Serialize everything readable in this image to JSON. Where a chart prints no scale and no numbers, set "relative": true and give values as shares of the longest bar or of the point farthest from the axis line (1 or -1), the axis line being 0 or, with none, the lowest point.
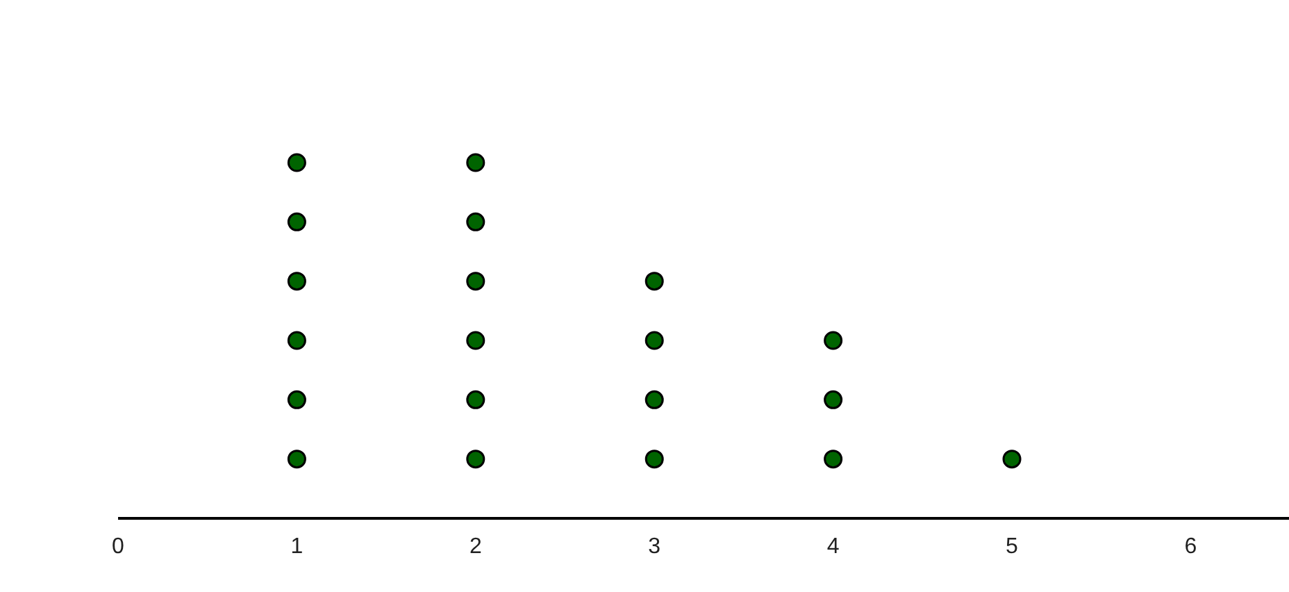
{
  "chart_data": {
    "type": "scatter",
    "relative": true,
    "marker": "circle",
    "grid": false,
    "xlim": [
      0,
      6.55
    ],
    "xticks": [
      0,
      1,
      2,
      3,
      4,
      5,
      6
    ],
    "series": [
      {
        "color": "#006400",
        "x": [
          1,
          1,
          1,
          1,
          1,
          1,
          2,
          2,
          2,
          2,
          2,
          2,
          3,
          3,
          3,
          3,
          4,
          4,
          4,
          5
        ],
        "values": [
          0.1667,
          0.3333,
          0.5,
          0.6667,
          0.8333,
          1,
          0.1667,
          0.3333,
          0.5,
          0.6667,
          0.8333,
          1,
          0.1667,
          0.3333,
          0.5,
          0.6667,
          0.1667,
          0.3333,
          0.5,
          0.1667
        ]
      }
    ]
  }
}
